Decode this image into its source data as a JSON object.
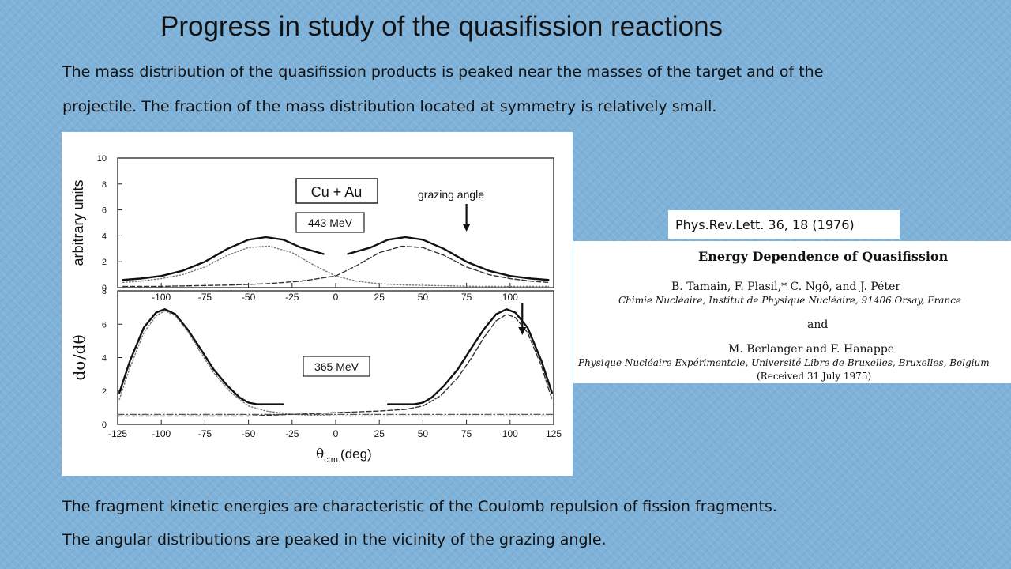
{
  "slide": {
    "title": "Progress in study of the quasifission reactions",
    "intro_line1": "The mass distribution of the quasifission products is peaked near the masses of the target and of the",
    "intro_line2": "projectile. The fraction of the mass distribution located at symmetry is relatively small.",
    "outro_line1": "The fragment kinetic energies are characteristic of the Coulomb repulsion of fission fragments.",
    "outro_line2": "The angular distributions are peaked in the vicinity of the grazing angle."
  },
  "reference": {
    "citation": "Phys.Rev.Lett. 36, 18 (1976)",
    "paper_title": "Energy Dependence of Quasifission",
    "authors_1": "B. Tamain, F. Plasil,* C. Ngô, and J. Péter",
    "affiliation_1": "Chimie Nucléaire, Institut de Physique Nucléaire, 91406 Orsay, France",
    "and_text": "and",
    "authors_2": "M. Berlanger and F. Hanappe",
    "affiliation_2": "Physique Nucléaire Expérimentale, Université Libre de Bruxelles, Bruxelles, Belgium",
    "received": "(Received 31 July 1975)"
  },
  "chart_data": [
    {
      "type": "line",
      "reaction_label": "Cu + Au",
      "energy_label": "443 MeV",
      "annotation": "grazing angle",
      "annotation_x": 75,
      "ylabel": "arbitrary units",
      "xlim": [
        -125,
        125
      ],
      "ylim": [
        0,
        10
      ],
      "xticks": [
        -100,
        -75,
        -50,
        -25,
        0,
        25,
        50,
        75,
        100
      ],
      "yticks": [
        0,
        2,
        4,
        6,
        8,
        10
      ],
      "grid": false,
      "series": [
        {
          "style": "solid",
          "segments": [
            {
              "x": [
                -122,
                -112,
                -100,
                -88,
                -75,
                -62,
                -50,
                -40,
                -30,
                -20,
                -7
              ],
              "y": [
                0.6,
                0.7,
                0.9,
                1.3,
                2.0,
                3.0,
                3.7,
                3.9,
                3.7,
                3.1,
                2.6
              ]
            },
            {
              "x": [
                7,
                20,
                30,
                40,
                50,
                62,
                75,
                88,
                100,
                112,
                122
              ],
              "y": [
                2.6,
                3.1,
                3.7,
                3.9,
                3.7,
                3.0,
                2.0,
                1.3,
                0.9,
                0.7,
                0.6
              ]
            }
          ]
        },
        {
          "style": "dotted",
          "x": [
            -122,
            -112,
            -100,
            -88,
            -75,
            -62,
            -50,
            -38,
            -25,
            -12,
            0,
            12,
            25,
            40,
            60,
            80,
            100,
            122
          ],
          "y": [
            0.4,
            0.5,
            0.7,
            1.0,
            1.6,
            2.5,
            3.1,
            3.2,
            2.7,
            1.7,
            0.9,
            0.5,
            0.3,
            0.2,
            0.15,
            0.1,
            0.1,
            0.1
          ]
        },
        {
          "style": "dashed",
          "x": [
            -122,
            -100,
            -80,
            -60,
            -40,
            -20,
            0,
            12,
            25,
            38,
            50,
            62,
            75,
            88,
            100,
            112,
            122
          ],
          "y": [
            0.1,
            0.1,
            0.15,
            0.2,
            0.3,
            0.5,
            0.9,
            1.7,
            2.7,
            3.2,
            3.1,
            2.5,
            1.6,
            1.0,
            0.7,
            0.5,
            0.4
          ]
        }
      ]
    },
    {
      "type": "line",
      "energy_label": "365 MeV",
      "ylabel": "dσ/dθ",
      "xlabel": "θ",
      "xlabel_sub": "c.m.",
      "xlabel_unit": "(deg)",
      "annotation_x": 107,
      "xlim": [
        -125,
        125
      ],
      "ylim": [
        0,
        8
      ],
      "xticks": [
        -125,
        -100,
        -75,
        -50,
        -25,
        0,
        25,
        50,
        75,
        100,
        125
      ],
      "yticks": [
        0,
        2,
        4,
        6,
        8
      ],
      "grid": false,
      "series": [
        {
          "style": "solid",
          "segments": [
            {
              "x": [
                -124,
                -118,
                -110,
                -103,
                -98,
                -92,
                -85,
                -78,
                -70,
                -62,
                -55,
                -50,
                -45,
                -40,
                -30
              ],
              "y": [
                1.9,
                3.8,
                5.8,
                6.7,
                6.9,
                6.6,
                5.7,
                4.6,
                3.3,
                2.3,
                1.6,
                1.3,
                1.2,
                1.2,
                1.2
              ]
            },
            {
              "x": [
                30,
                40,
                45,
                50,
                55,
                62,
                70,
                78,
                85,
                92,
                98,
                103,
                110,
                118,
                124
              ],
              "y": [
                1.2,
                1.2,
                1.2,
                1.3,
                1.6,
                2.3,
                3.3,
                4.6,
                5.7,
                6.6,
                6.9,
                6.7,
                5.8,
                3.8,
                1.9
              ]
            }
          ]
        },
        {
          "style": "dotted",
          "x": [
            -124,
            -118,
            -110,
            -103,
            -98,
            -92,
            -85,
            -78,
            -70,
            -60,
            -50,
            -40,
            -25,
            0,
            25,
            50,
            75,
            100,
            125
          ],
          "y": [
            1.5,
            3.4,
            5.5,
            6.5,
            6.8,
            6.5,
            5.6,
            4.4,
            3.1,
            1.9,
            1.1,
            0.8,
            0.6,
            0.5,
            0.5,
            0.5,
            0.5,
            0.5,
            0.5
          ]
        },
        {
          "style": "dashed",
          "x": [
            -125,
            -100,
            -75,
            -50,
            -25,
            0,
            25,
            40,
            50,
            60,
            70,
            78,
            85,
            92,
            98,
            103,
            110,
            118,
            124
          ],
          "y": [
            0.5,
            0.5,
            0.5,
            0.5,
            0.6,
            0.7,
            0.8,
            0.9,
            1.1,
            1.7,
            2.8,
            4.0,
            5.2,
            6.2,
            6.6,
            6.4,
            5.5,
            3.5,
            1.5
          ]
        },
        {
          "style": "dash-dot",
          "x": [
            -125,
            -100,
            -75,
            -50,
            -25,
            0,
            25,
            50,
            75,
            100,
            125
          ],
          "y": [
            0.6,
            0.6,
            0.6,
            0.6,
            0.6,
            0.6,
            0.6,
            0.6,
            0.6,
            0.6,
            0.6
          ]
        }
      ]
    }
  ]
}
